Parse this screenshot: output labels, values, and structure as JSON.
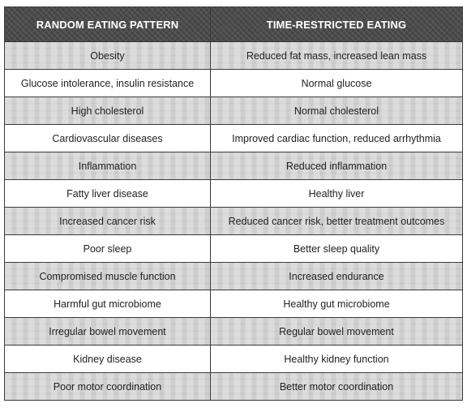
{
  "table": {
    "headers": [
      "RANDOM EATING PATTERN",
      "TIME-RESTRICTED EATING"
    ],
    "rows": [
      [
        "Obesity",
        "Reduced fat mass, increased lean mass"
      ],
      [
        "Glucose intolerance, insulin resistance",
        "Normal glucose"
      ],
      [
        "High cholesterol",
        "Normal cholesterol"
      ],
      [
        "Cardiovascular diseases",
        "Improved cardiac function, reduced arrhythmia"
      ],
      [
        "Inflammation",
        "Reduced inflammation"
      ],
      [
        "Fatty liver disease",
        "Healthy liver"
      ],
      [
        "Increased cancer risk",
        "Reduced cancer risk, better treatment outcomes"
      ],
      [
        "Poor sleep",
        "Better sleep quality"
      ],
      [
        "Compromised muscle function",
        "Increased endurance"
      ],
      [
        "Harmful gut microbiome",
        "Healthy gut microbiome"
      ],
      [
        "Irregular bowel movement",
        "Regular bowel movement"
      ],
      [
        "Kidney disease",
        "Healthy kidney function"
      ],
      [
        "Poor motor coordination",
        "Better motor coordination"
      ]
    ]
  },
  "colors": {
    "header_bg": "#4b4b4b",
    "header_text": "#ffffff",
    "shaded_row_bg": "#cfcfcf",
    "plain_row_bg": "#ffffff",
    "border": "#3a3a3a"
  }
}
